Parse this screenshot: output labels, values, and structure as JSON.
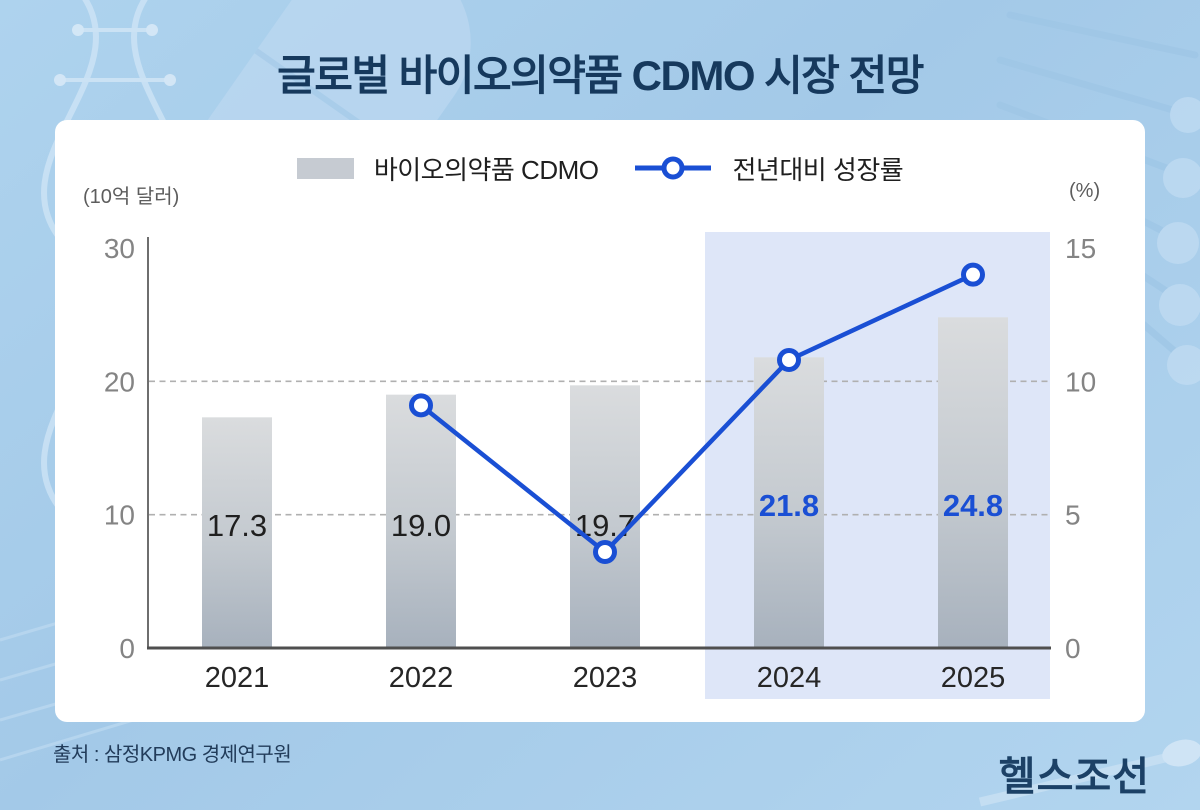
{
  "page": {
    "title": "글로벌 바이오의약품 CDMO 시장 전망",
    "source": "출처 : 삼정KPMG 경제연구원",
    "logo": "헬스조선"
  },
  "legend": {
    "bar_label": "바이오의약품 CDMO",
    "line_label": "전년대비 성장률"
  },
  "axes": {
    "left_unit": "(10억 달러)",
    "right_unit": "(%)"
  },
  "colors": {
    "line_blue": "#1a4fd4",
    "title_navy": "#16395d",
    "bar_top": "#dadcde",
    "bar_bottom": "#a7b1bd",
    "legend_swatch_gray": "#c6cbd2",
    "highlight": "#dee6f8",
    "background_blue": "#a7cde9",
    "axis_gray": "#6e6e6e",
    "tick_gray": "#848484"
  },
  "chart_data": {
    "type": "bar",
    "subtype": "bar+line combo",
    "title": "글로벌 바이오의약품 CDMO 시장 전망",
    "categories": [
      "2021",
      "2022",
      "2023",
      "2024",
      "2025"
    ],
    "series": [
      {
        "name": "바이오의약품 CDMO",
        "type": "bar",
        "axis": "left",
        "values": [
          17.3,
          19.0,
          19.7,
          21.8,
          24.8
        ],
        "value_labels": [
          "17.3",
          "19.0",
          "19.7",
          "21.8",
          "24.8"
        ],
        "label_styles": [
          "dark",
          "dark",
          "dark",
          "blue",
          "blue"
        ]
      },
      {
        "name": "전년대비 성장률",
        "type": "line",
        "axis": "right",
        "values": [
          null,
          9.1,
          3.6,
          10.8,
          14.0
        ]
      }
    ],
    "left_axis": {
      "label": "(10억 달러)",
      "range": [
        0,
        30
      ],
      "ticks": [
        0,
        10,
        20,
        30
      ]
    },
    "right_axis": {
      "label": "(%)",
      "range": [
        0,
        15
      ],
      "ticks": [
        0,
        5,
        10,
        15
      ]
    },
    "gridlines": {
      "style": "dashed",
      "left_values": [
        10,
        20
      ]
    },
    "highlight": {
      "categories": [
        "2024",
        "2025"
      ],
      "color": "#dee6f8"
    },
    "legend_position": "top-center"
  }
}
